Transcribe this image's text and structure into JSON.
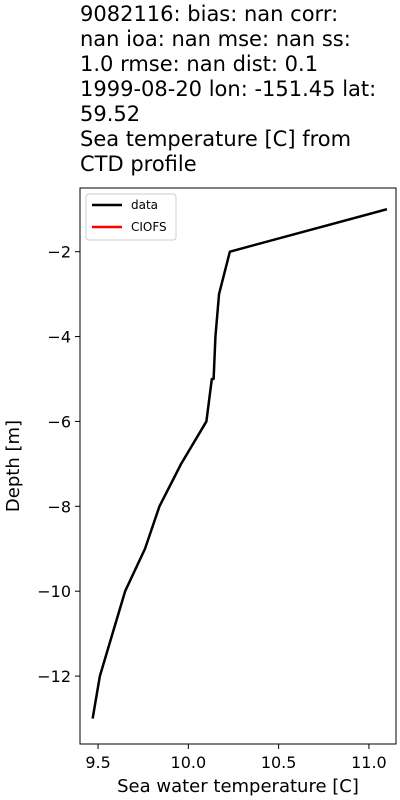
{
  "title_lines": [
    "9082116: bias: nan  corr:",
    "nan  ioa: nan  mse: nan  ss:",
    "1.0  rmse: nan  dist: 0.1",
    "1999-08-20 lon: -151.45 lat:",
    "59.52",
    "Sea temperature [C] from",
    "CTD profile"
  ],
  "chart_data": {
    "type": "line",
    "xlabel": "Sea water temperature [C]",
    "ylabel": "Depth [m]",
    "xlim": [
      9.4,
      11.15
    ],
    "ylim": [
      -13.6,
      -0.5
    ],
    "xticks": [
      9.5,
      10.0,
      10.5,
      11.0
    ],
    "xtick_labels": [
      "9.5",
      "10.0",
      "10.5",
      "11.0"
    ],
    "yticks": [
      -2,
      -4,
      -6,
      -8,
      -10,
      -12
    ],
    "ytick_labels": [
      "−2",
      "−4",
      "−6",
      "−8",
      "−10",
      "−12"
    ],
    "grid": false,
    "legend": "upper-left",
    "series": [
      {
        "name": "data",
        "color": "#000000",
        "x": [
          11.1,
          10.23,
          10.17,
          10.15,
          10.14,
          10.13,
          10.1,
          9.96,
          9.84,
          9.76,
          9.65,
          9.58,
          9.51,
          9.47
        ],
        "y": [
          -1.0,
          -2.0,
          -3.0,
          -4.0,
          -5.0,
          -5.0,
          -6.0,
          -7.0,
          -8.0,
          -9.0,
          -10.0,
          -11.0,
          -12.0,
          -13.0
        ]
      },
      {
        "name": "CIOFS",
        "color": "#ff0000",
        "x": [],
        "y": []
      }
    ]
  }
}
